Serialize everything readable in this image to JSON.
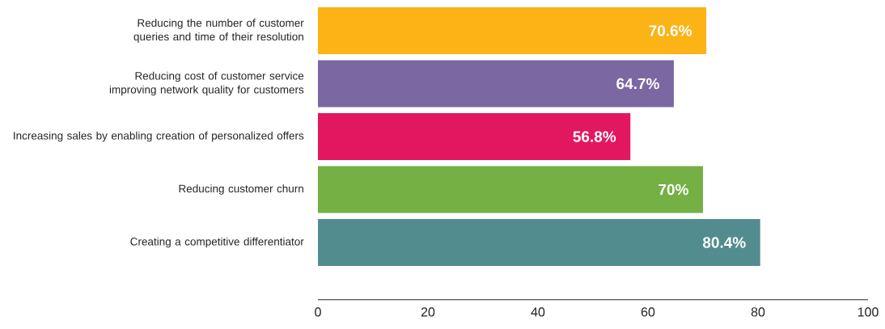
{
  "chart_data": {
    "type": "bar",
    "orientation": "horizontal",
    "categories": [
      "Reducing the number of customer queries and time of their resolution",
      "Reducing cost of customer service improving network quality for customers",
      "Increasing sales by enabling creation of personalized offers",
      "Reducing customer churn",
      "Creating a competitive differentiator"
    ],
    "values": [
      70.6,
      64.7,
      56.8,
      70,
      80.4
    ],
    "colors": [
      "#fbb316",
      "#7b68a3",
      "#e31760",
      "#74b044",
      "#528c8e"
    ],
    "value_labels": [
      "70.6%",
      "64.7%",
      "56.8%",
      "70%",
      "80.4%"
    ],
    "xlim": [
      0,
      100
    ],
    "xticks": [
      0,
      20,
      40,
      60,
      80,
      100
    ],
    "grid": false
  }
}
